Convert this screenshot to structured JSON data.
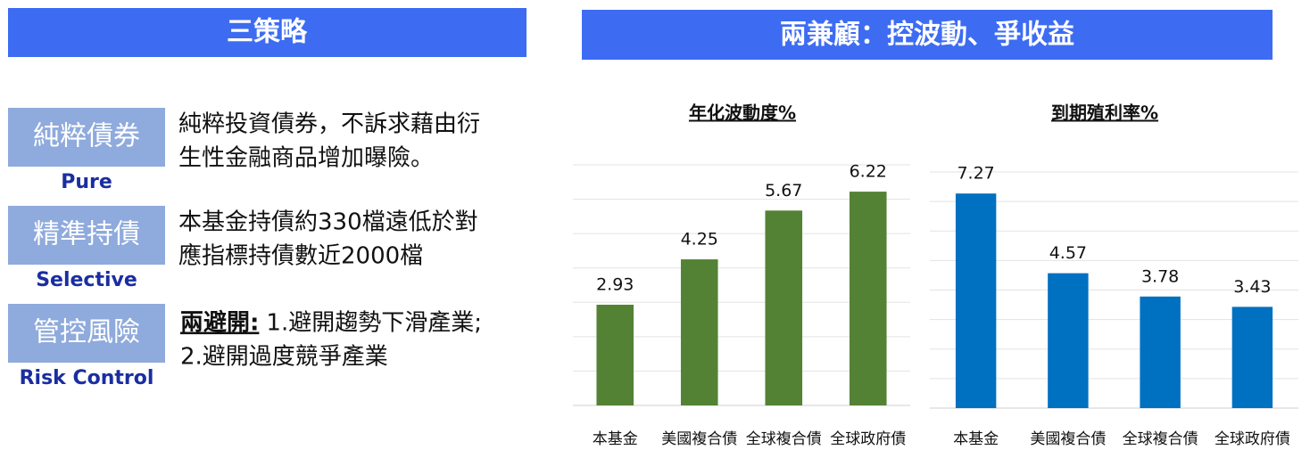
{
  "left": {
    "title": "三策略",
    "items": [
      {
        "label": "純粹債券",
        "sub": "Pure",
        "lines": [
          "純粹投資債券，不訴求藉由衍",
          "生性金融商品增加曝險。"
        ]
      },
      {
        "label": "精準持債",
        "sub": "Selective",
        "lines": [
          "本基金持債約330檔遠低於對",
          "應指標持債數近2000檔"
        ]
      },
      {
        "label": "管控風險",
        "sub": "Risk Control",
        "lead": "兩避開:",
        "lines": [
          "1.避開趨勢下滑產業;",
          "2.避開過度競爭產業"
        ]
      }
    ]
  },
  "right": {
    "title": "兩兼顧：控波動、爭收益"
  },
  "chart_data": [
    {
      "type": "bar",
      "title": "年化波動度%",
      "categories": [
        "本基金",
        "美國複合債",
        "全球複合債",
        "全球政府債"
      ],
      "values": [
        2.93,
        4.25,
        5.67,
        6.22
      ],
      "color": "#548235",
      "ylim": [
        0,
        7
      ],
      "yticks": [
        0,
        1,
        2,
        3,
        4,
        5,
        6,
        7
      ],
      "grid": true,
      "ytick_labels": false
    },
    {
      "type": "bar",
      "title": "到期殖利率%",
      "categories": [
        "本基金",
        "美國複合債",
        "全球複合債",
        "全球政府債"
      ],
      "values": [
        7.27,
        4.57,
        3.78,
        3.43
      ],
      "color": "#0070c0",
      "ylim": [
        0,
        8
      ],
      "yticks": [
        0,
        1,
        2,
        3,
        4,
        5,
        6,
        7,
        8
      ],
      "grid": true,
      "ytick_labels": false
    }
  ]
}
